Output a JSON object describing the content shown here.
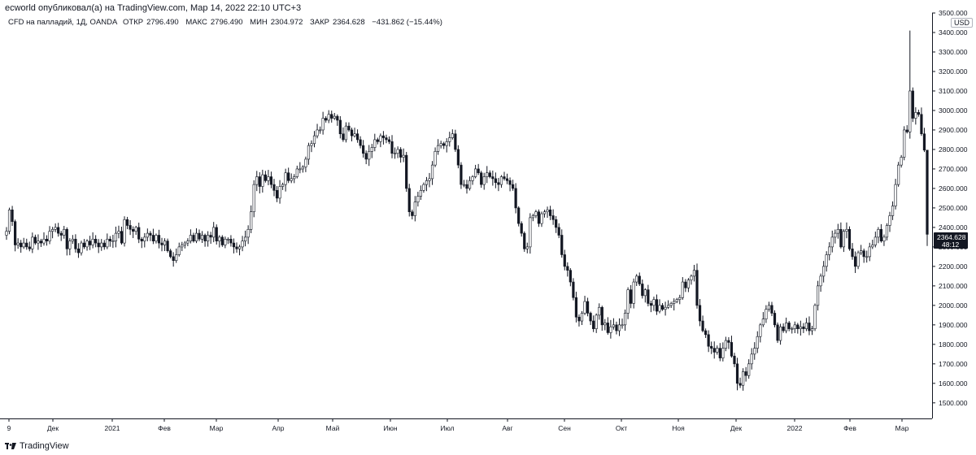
{
  "header": {
    "published": "ecworld опубликовал(а) на TradingView.com, Мар 14, 2022 22:10 UTC+3"
  },
  "legend": {
    "symbol": "CFD на палладий, 1Д, OANDA",
    "open_label": "ОТКР",
    "open_value": "2796.490",
    "high_label": "МАКС",
    "high_value": "2796.490",
    "low_label": "МИН",
    "low_value": "2304.972",
    "close_label": "ЗАКР",
    "close_value": "2364.628",
    "change": "−431.862 (−15.44%)"
  },
  "currency": "USD",
  "price_tag": {
    "price": "2364.628",
    "countdown": "48:12"
  },
  "brand": "TradingView",
  "colors": {
    "candle": "#131722",
    "background": "#ffffff",
    "axis_line": "#131722",
    "price_tag": "#131722"
  },
  "chart_data": {
    "type": "candlestick",
    "interval": "1D",
    "y_axis": {
      "range": [
        1420,
        3500
      ],
      "ticks": [
        1500,
        1600,
        1700,
        1800,
        1900,
        2000,
        2100,
        2200,
        2300,
        2400,
        2500,
        2600,
        2700,
        2800,
        2900,
        3000,
        3100,
        3200,
        3300,
        3400,
        3500
      ],
      "tick_labels": [
        "1500.000",
        "1600.000",
        "1700.000",
        "1800.000",
        "1900.000",
        "2000.000",
        "2100.000",
        "2200.000",
        "2300.000",
        "2400.000",
        "2500.000",
        "2600.000",
        "2700.000",
        "2800.000",
        "2900.000",
        "3000.000",
        "3100.000",
        "3200.000",
        "3300.000",
        "3400.000",
        "3500.000"
      ]
    },
    "x_axis": {
      "ticks": [
        "9",
        "Дек",
        "2021",
        "Фев",
        "Мар",
        "Апр",
        "Май",
        "Июн",
        "Июл",
        "Авг",
        "Сен",
        "Окт",
        "Ноя",
        "Дек",
        "2022",
        "Фев",
        "Мар"
      ],
      "grid": false
    },
    "last_close": 2364.628,
    "closes": [
      2380,
      2490,
      2430,
      2310,
      2320,
      2300,
      2320,
      2300,
      2290,
      2350,
      2320,
      2330,
      2320,
      2340,
      2330,
      2380,
      2390,
      2400,
      2370,
      2360,
      2390,
      2290,
      2330,
      2340,
      2290,
      2270,
      2320,
      2300,
      2330,
      2310,
      2340,
      2320,
      2300,
      2320,
      2300,
      2340,
      2330,
      2330,
      2370,
      2380,
      2320,
      2440,
      2410,
      2390,
      2380,
      2400,
      2340,
      2330,
      2350,
      2370,
      2360,
      2330,
      2360,
      2320,
      2310,
      2330,
      2280,
      2250,
      2230,
      2260,
      2300,
      2310,
      2320,
      2330,
      2360,
      2330,
      2370,
      2340,
      2360,
      2330,
      2360,
      2350,
      2400,
      2330,
      2350,
      2310,
      2340,
      2340,
      2320,
      2300,
      2290,
      2300,
      2330,
      2350,
      2390,
      2480,
      2620,
      2660,
      2610,
      2670,
      2640,
      2660,
      2620,
      2590,
      2550,
      2610,
      2620,
      2680,
      2640,
      2650,
      2660,
      2700,
      2700,
      2710,
      2750,
      2820,
      2830,
      2870,
      2900,
      2900,
      2960,
      2950,
      2980,
      2960,
      2970,
      2950,
      2880,
      2850,
      2920,
      2900,
      2870,
      2880,
      2850,
      2820,
      2780,
      2750,
      2790,
      2810,
      2850,
      2840,
      2870,
      2860,
      2850,
      2840,
      2780,
      2780,
      2800,
      2760,
      2770,
      2600,
      2480,
      2460,
      2530,
      2560,
      2590,
      2620,
      2640,
      2650,
      2720,
      2790,
      2820,
      2830,
      2820,
      2840,
      2860,
      2880,
      2800,
      2720,
      2620,
      2620,
      2600,
      2640,
      2660,
      2700,
      2680,
      2620,
      2660,
      2680,
      2660,
      2650,
      2630,
      2620,
      2660,
      2650,
      2640,
      2620,
      2600,
      2500,
      2420,
      2370,
      2290,
      2300,
      2450,
      2460,
      2480,
      2420,
      2470,
      2480,
      2490,
      2460,
      2440,
      2400,
      2360,
      2260,
      2200,
      2180,
      2120,
      2040,
      1940,
      1920,
      1960,
      2020,
      1960,
      1920,
      1880,
      1950,
      1990,
      1900,
      1910,
      1860,
      1890,
      1900,
      1870,
      1900,
      1900,
      1960,
      2080,
      2010,
      2120,
      2150,
      2110,
      2050,
      2080,
      2010,
      2000,
      2030,
      1970,
      2000,
      1980,
      1990,
      2000,
      2010,
      2020,
      2030,
      2040,
      2120,
      2090,
      2130,
      2150,
      2180,
      2000,
      1920,
      1870,
      1850,
      1790,
      1780,
      1760,
      1780,
      1730,
      1780,
      1820,
      1810,
      1740,
      1700,
      1600,
      1590,
      1660,
      1640,
      1700,
      1750,
      1780,
      1840,
      1900,
      1930,
      1980,
      2000,
      1960,
      1900,
      1820,
      1890,
      1870,
      1910,
      1880,
      1880,
      1900,
      1880,
      1890,
      1880,
      1910,
      1870,
      1880,
      2000,
      2100,
      2150,
      2200,
      2260,
      2300,
      2350,
      2370,
      2390,
      2300,
      2380,
      2390,
      2290,
      2250,
      2200,
      2270,
      2280,
      2250,
      2250,
      2300,
      2310,
      2350,
      2390,
      2330,
      2350,
      2410,
      2460,
      2510,
      2620,
      2720,
      2760,
      2900,
      2890,
      3100,
      2960,
      2990,
      2980,
      2880,
      2796.49,
      2364.628
    ]
  }
}
